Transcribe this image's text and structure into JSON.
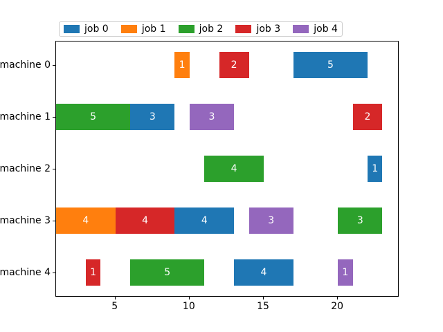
{
  "chart_data": {
    "type": "bar",
    "subtype": "gantt-horizontal",
    "title": "",
    "machines": [
      "machine 0",
      "machine 1",
      "machine 2",
      "machine 3",
      "machine 4"
    ],
    "legend": {
      "position": "top",
      "entries": [
        {
          "label": "job 0",
          "color": "#1f77b4"
        },
        {
          "label": "job 1",
          "color": "#ff7f0e"
        },
        {
          "label": "job 2",
          "color": "#2ca02c"
        },
        {
          "label": "job 3",
          "color": "#d62728"
        },
        {
          "label": "job 4",
          "color": "#9467bd"
        }
      ]
    },
    "xlim": [
      1,
      24.1
    ],
    "xticks": [
      5,
      10,
      15,
      20
    ],
    "grid": false,
    "bar_label_color": "#ffffff",
    "tasks": [
      {
        "machine": "machine 0",
        "job": "job 1",
        "start": 9,
        "duration": 1,
        "label": "1"
      },
      {
        "machine": "machine 0",
        "job": "job 3",
        "start": 12,
        "duration": 2,
        "label": "2"
      },
      {
        "machine": "machine 0",
        "job": "job 0",
        "start": 17,
        "duration": 5,
        "label": "5"
      },
      {
        "machine": "machine 1",
        "job": "job 2",
        "start": 1,
        "duration": 5,
        "label": "5"
      },
      {
        "machine": "machine 1",
        "job": "job 0",
        "start": 6,
        "duration": 3,
        "label": "3"
      },
      {
        "machine": "machine 1",
        "job": "job 4",
        "start": 10,
        "duration": 3,
        "label": "3"
      },
      {
        "machine": "machine 1",
        "job": "job 3",
        "start": 21,
        "duration": 2,
        "label": "2"
      },
      {
        "machine": "machine 2",
        "job": "job 2",
        "start": 11,
        "duration": 4,
        "label": "4"
      },
      {
        "machine": "machine 2",
        "job": "job 0",
        "start": 22,
        "duration": 1,
        "label": "1"
      },
      {
        "machine": "machine 3",
        "job": "job 1",
        "start": 1,
        "duration": 4,
        "label": "4"
      },
      {
        "machine": "machine 3",
        "job": "job 3",
        "start": 5,
        "duration": 4,
        "label": "4"
      },
      {
        "machine": "machine 3",
        "job": "job 0",
        "start": 9,
        "duration": 4,
        "label": "4"
      },
      {
        "machine": "machine 3",
        "job": "job 4",
        "start": 14,
        "duration": 3,
        "label": "3"
      },
      {
        "machine": "machine 3",
        "job": "job 2",
        "start": 20,
        "duration": 3,
        "label": "3"
      },
      {
        "machine": "machine 4",
        "job": "job 3",
        "start": 3,
        "duration": 1,
        "label": "1"
      },
      {
        "machine": "machine 4",
        "job": "job 2",
        "start": 6,
        "duration": 5,
        "label": "5"
      },
      {
        "machine": "machine 4",
        "job": "job 0",
        "start": 13,
        "duration": 4,
        "label": "4"
      },
      {
        "machine": "machine 4",
        "job": "job 4",
        "start": 20,
        "duration": 1,
        "label": "1"
      }
    ]
  }
}
